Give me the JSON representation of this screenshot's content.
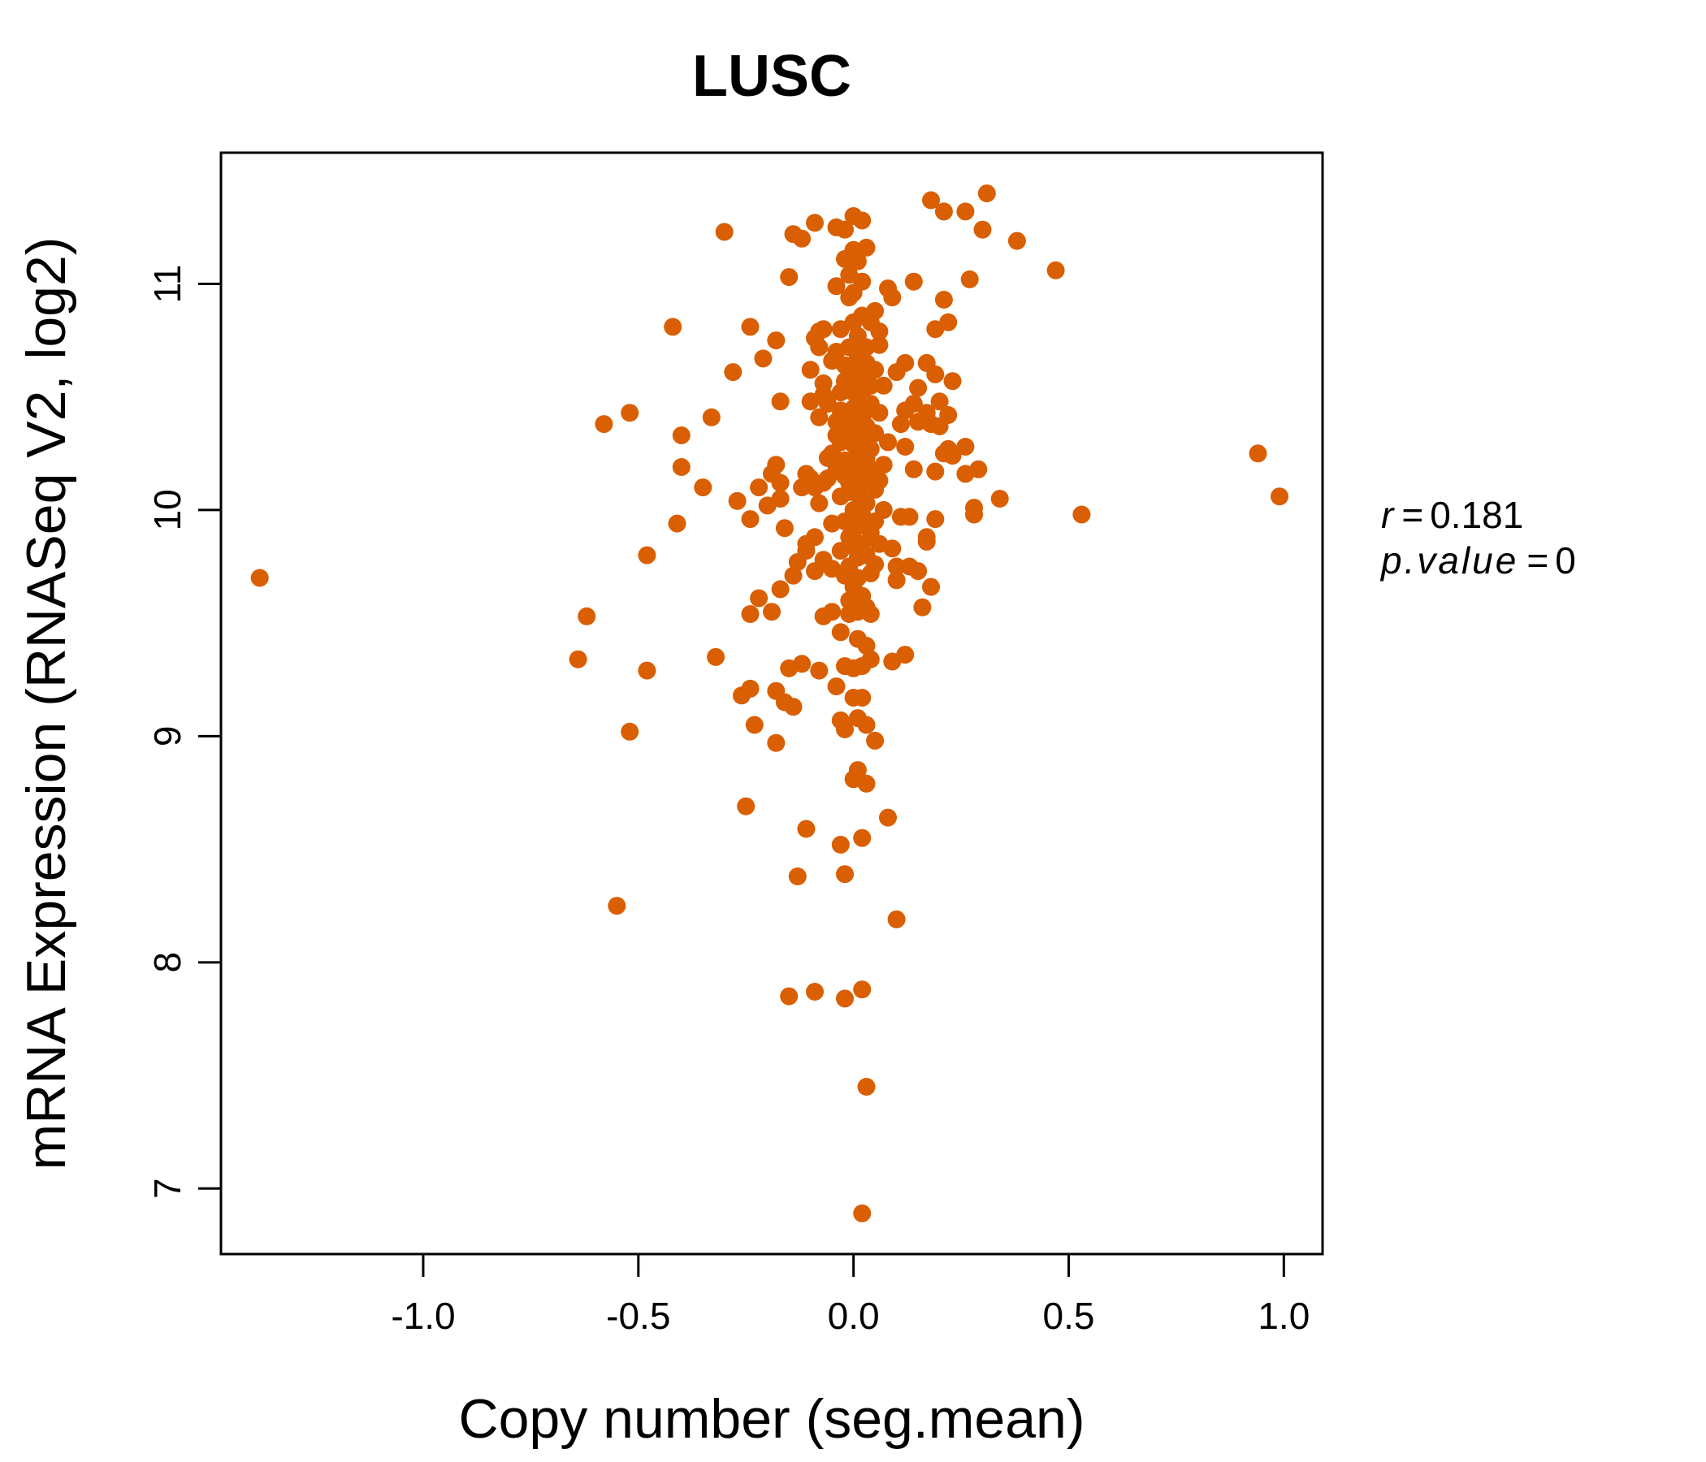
{
  "chart_data": {
    "type": "scatter",
    "title": "LUSC",
    "xlabel": "Copy number (seg.mean)",
    "ylabel": "mRNA Expression (RNASeq V2, log2)",
    "xlim": [
      -1.47,
      1.09
    ],
    "ylim": [
      6.71,
      11.58
    ],
    "xticks": [
      -1.0,
      -0.5,
      0.0,
      0.5,
      1.0
    ],
    "xtick_labels": [
      "-1.0",
      "-0.5",
      "0.0",
      "0.5",
      "1.0"
    ],
    "yticks": [
      7,
      8,
      9,
      10,
      11
    ],
    "ytick_labels": [
      "7",
      "8",
      "9",
      "10",
      "11"
    ],
    "grid": false,
    "legend": "none",
    "point_color": "#D95F02",
    "title_color": "#D95F02",
    "annotation": {
      "r_label": "r",
      "r_value": "0.181",
      "p_label": "p.value",
      "p_value": "0"
    },
    "points": [
      [
        -1.38,
        9.7
      ],
      [
        -0.64,
        9.34
      ],
      [
        -0.62,
        9.53
      ],
      [
        -0.58,
        10.38
      ],
      [
        -0.55,
        8.25
      ],
      [
        -0.52,
        10.43
      ],
      [
        -0.52,
        9.02
      ],
      [
        -0.48,
        9.8
      ],
      [
        -0.48,
        9.29
      ],
      [
        -0.42,
        10.81
      ],
      [
        -0.41,
        9.94
      ],
      [
        -0.4,
        10.33
      ],
      [
        -0.4,
        10.19
      ],
      [
        -0.35,
        10.1
      ],
      [
        -0.33,
        10.41
      ],
      [
        -0.32,
        9.35
      ],
      [
        -0.3,
        11.23
      ],
      [
        -0.28,
        10.61
      ],
      [
        -0.27,
        10.04
      ],
      [
        -0.26,
        9.18
      ],
      [
        -0.25,
        8.69
      ],
      [
        -0.24,
        9.21
      ],
      [
        -0.24,
        9.96
      ],
      [
        -0.24,
        9.54
      ],
      [
        -0.24,
        10.81
      ],
      [
        -0.23,
        9.05
      ],
      [
        -0.22,
        10.1
      ],
      [
        -0.22,
        9.61
      ],
      [
        -0.21,
        10.67
      ],
      [
        -0.2,
        10.02
      ],
      [
        -0.19,
        10.16
      ],
      [
        -0.19,
        9.55
      ],
      [
        -0.18,
        10.2
      ],
      [
        -0.18,
        9.2
      ],
      [
        -0.18,
        10.75
      ],
      [
        -0.18,
        8.97
      ],
      [
        -0.17,
        10.05
      ],
      [
        -0.17,
        10.12
      ],
      [
        -0.17,
        10.48
      ],
      [
        -0.17,
        9.65
      ],
      [
        -0.16,
        9.15
      ],
      [
        -0.16,
        9.92
      ],
      [
        -0.15,
        9.3
      ],
      [
        -0.15,
        11.03
      ],
      [
        -0.15,
        7.85
      ],
      [
        -0.14,
        9.13
      ],
      [
        -0.14,
        11.22
      ],
      [
        -0.14,
        9.71
      ],
      [
        -0.13,
        9.77
      ],
      [
        -0.13,
        8.38
      ],
      [
        -0.12,
        9.32
      ],
      [
        -0.12,
        10.1
      ],
      [
        -0.12,
        11.2
      ],
      [
        -0.11,
        8.59
      ],
      [
        -0.11,
        10.16
      ],
      [
        -0.11,
        9.85
      ],
      [
        -0.11,
        9.82
      ],
      [
        -0.1,
        10.62
      ],
      [
        -0.1,
        10.48
      ],
      [
        -0.1,
        10.14
      ],
      [
        -0.09,
        10.76
      ],
      [
        -0.09,
        10.1
      ],
      [
        -0.09,
        9.88
      ],
      [
        -0.09,
        9.73
      ],
      [
        -0.09,
        7.87
      ],
      [
        -0.09,
        11.27
      ],
      [
        -0.08,
        10.72
      ],
      [
        -0.08,
        10.79
      ],
      [
        -0.08,
        10.41
      ],
      [
        -0.08,
        10.03
      ],
      [
        -0.08,
        9.29
      ],
      [
        -0.07,
        10.8
      ],
      [
        -0.07,
        10.51
      ],
      [
        -0.07,
        10.12
      ],
      [
        -0.07,
        9.78
      ],
      [
        -0.07,
        9.53
      ],
      [
        -0.07,
        10.56
      ],
      [
        -0.06,
        10.23
      ],
      [
        -0.06,
        10.47
      ],
      [
        -0.06,
        10.14
      ],
      [
        -0.05,
        10.25
      ],
      [
        -0.05,
        10.66
      ],
      [
        -0.05,
        9.94
      ],
      [
        -0.05,
        9.74
      ],
      [
        -0.05,
        9.55
      ],
      [
        -0.04,
        10.7
      ],
      [
        -0.04,
        10.33
      ],
      [
        -0.04,
        9.22
      ],
      [
        -0.04,
        10.99
      ],
      [
        -0.04,
        10.18
      ],
      [
        -0.04,
        11.25
      ],
      [
        -0.04,
        10.39
      ],
      [
        -0.03,
        10.52
      ],
      [
        -0.03,
        10.06
      ],
      [
        -0.03,
        9.82
      ],
      [
        -0.03,
        9.46
      ],
      [
        -0.03,
        9.07
      ],
      [
        -0.03,
        8.52
      ],
      [
        -0.03,
        10.8
      ],
      [
        -0.03,
        10.44
      ],
      [
        -0.03,
        10.3
      ],
      [
        -0.02,
        10.22
      ],
      [
        -0.02,
        10.64
      ],
      [
        -0.02,
        10.15
      ],
      [
        -0.02,
        9.95
      ],
      [
        -0.02,
        9.71
      ],
      [
        -0.02,
        9.31
      ],
      [
        -0.02,
        9.03
      ],
      [
        -0.02,
        8.39
      ],
      [
        -0.02,
        7.84
      ],
      [
        -0.02,
        10.57
      ],
      [
        -0.02,
        11.11
      ],
      [
        -0.02,
        11.24
      ],
      [
        -0.01,
        10.41
      ],
      [
        -0.01,
        10.08
      ],
      [
        -0.01,
        9.88
      ],
      [
        -0.01,
        9.6
      ],
      [
        -0.01,
        9.54
      ],
      [
        -0.01,
        10.94
      ],
      [
        -0.01,
        10.72
      ],
      [
        -0.01,
        10.35
      ],
      [
        -0.01,
        10.12
      ],
      [
        -0.01,
        9.75
      ],
      [
        -0.01,
        11.04
      ],
      [
        0.0,
        10.62
      ],
      [
        0.0,
        10.45
      ],
      [
        0.0,
        10.29
      ],
      [
        0.0,
        10.0
      ],
      [
        0.0,
        9.84
      ],
      [
        0.0,
        9.3
      ],
      [
        0.0,
        9.17
      ],
      [
        0.0,
        8.81
      ],
      [
        0.0,
        11.3
      ],
      [
        0.0,
        10.83
      ],
      [
        0.0,
        10.52
      ],
      [
        0.0,
        10.38
      ],
      [
        0.0,
        10.18
      ],
      [
        0.0,
        9.91
      ],
      [
        0.0,
        9.66
      ],
      [
        0.0,
        11.15
      ],
      [
        0.0,
        10.96
      ],
      [
        0.01,
        10.68
      ],
      [
        0.01,
        10.46
      ],
      [
        0.01,
        10.25
      ],
      [
        0.01,
        10.07
      ],
      [
        0.01,
        9.79
      ],
      [
        0.01,
        9.55
      ],
      [
        0.01,
        9.43
      ],
      [
        0.01,
        9.08
      ],
      [
        0.01,
        8.85
      ],
      [
        0.01,
        11.1
      ],
      [
        0.01,
        10.77
      ],
      [
        0.01,
        10.56
      ],
      [
        0.01,
        10.34
      ],
      [
        0.01,
        10.14
      ],
      [
        0.01,
        9.93
      ],
      [
        0.01,
        9.7
      ],
      [
        0.02,
        10.6
      ],
      [
        0.02,
        10.41
      ],
      [
        0.02,
        10.2
      ],
      [
        0.02,
        9.98
      ],
      [
        0.02,
        9.85
      ],
      [
        0.02,
        9.62
      ],
      [
        0.02,
        9.31
      ],
      [
        0.02,
        9.17
      ],
      [
        0.02,
        8.55
      ],
      [
        0.02,
        7.88
      ],
      [
        0.02,
        6.89
      ],
      [
        0.02,
        11.28
      ],
      [
        0.02,
        11.01
      ],
      [
        0.02,
        10.86
      ],
      [
        0.02,
        10.52
      ],
      [
        0.02,
        10.3
      ],
      [
        0.03,
        10.65
      ],
      [
        0.03,
        10.44
      ],
      [
        0.03,
        10.23
      ],
      [
        0.03,
        10.03
      ],
      [
        0.03,
        9.8
      ],
      [
        0.03,
        9.57
      ],
      [
        0.03,
        9.4
      ],
      [
        0.03,
        9.05
      ],
      [
        0.03,
        8.79
      ],
      [
        0.03,
        7.45
      ],
      [
        0.03,
        11.16
      ],
      [
        0.03,
        10.72
      ],
      [
        0.03,
        10.37
      ],
      [
        0.03,
        10.11
      ],
      [
        0.04,
        10.55
      ],
      [
        0.04,
        10.27
      ],
      [
        0.04,
        9.9
      ],
      [
        0.04,
        9.72
      ],
      [
        0.04,
        9.54
      ],
      [
        0.04,
        9.34
      ],
      [
        0.04,
        10.83
      ],
      [
        0.04,
        10.47
      ],
      [
        0.04,
        10.18
      ],
      [
        0.05,
        10.62
      ],
      [
        0.05,
        10.34
      ],
      [
        0.05,
        9.95
      ],
      [
        0.05,
        9.76
      ],
      [
        0.05,
        8.98
      ],
      [
        0.05,
        10.88
      ],
      [
        0.05,
        10.09
      ],
      [
        0.06,
        10.73
      ],
      [
        0.06,
        10.43
      ],
      [
        0.06,
        10.13
      ],
      [
        0.06,
        9.85
      ],
      [
        0.06,
        10.79
      ],
      [
        0.07,
        10.55
      ],
      [
        0.07,
        10.0
      ],
      [
        0.07,
        10.2
      ],
      [
        0.08,
        8.64
      ],
      [
        0.08,
        10.98
      ],
      [
        0.08,
        10.3
      ],
      [
        0.09,
        9.83
      ],
      [
        0.09,
        10.94
      ],
      [
        0.09,
        9.33
      ],
      [
        0.1,
        10.61
      ],
      [
        0.1,
        9.75
      ],
      [
        0.1,
        9.69
      ],
      [
        0.1,
        8.19
      ],
      [
        0.11,
        10.38
      ],
      [
        0.11,
        9.97
      ],
      [
        0.12,
        10.65
      ],
      [
        0.12,
        10.44
      ],
      [
        0.12,
        10.28
      ],
      [
        0.12,
        9.36
      ],
      [
        0.13,
        9.97
      ],
      [
        0.13,
        9.75
      ],
      [
        0.14,
        10.47
      ],
      [
        0.14,
        10.18
      ],
      [
        0.14,
        11.01
      ],
      [
        0.15,
        10.39
      ],
      [
        0.15,
        9.73
      ],
      [
        0.15,
        10.54
      ],
      [
        0.16,
        9.57
      ],
      [
        0.17,
        10.65
      ],
      [
        0.17,
        9.88
      ],
      [
        0.17,
        9.86
      ],
      [
        0.17,
        10.43
      ],
      [
        0.18,
        9.66
      ],
      [
        0.18,
        10.38
      ],
      [
        0.18,
        11.37
      ],
      [
        0.19,
        10.6
      ],
      [
        0.19,
        10.8
      ],
      [
        0.19,
        10.17
      ],
      [
        0.19,
        9.96
      ],
      [
        0.2,
        10.48
      ],
      [
        0.2,
        10.37
      ],
      [
        0.21,
        10.93
      ],
      [
        0.21,
        11.32
      ],
      [
        0.21,
        10.25
      ],
      [
        0.22,
        10.83
      ],
      [
        0.22,
        10.42
      ],
      [
        0.22,
        10.27
      ],
      [
        0.23,
        10.24
      ],
      [
        0.23,
        10.57
      ],
      [
        0.26,
        10.16
      ],
      [
        0.26,
        10.28
      ],
      [
        0.26,
        11.32
      ],
      [
        0.27,
        11.02
      ],
      [
        0.28,
        9.98
      ],
      [
        0.28,
        10.01
      ],
      [
        0.29,
        10.18
      ],
      [
        0.3,
        11.24
      ],
      [
        0.31,
        11.4
      ],
      [
        0.34,
        10.05
      ],
      [
        0.38,
        11.19
      ],
      [
        0.47,
        11.06
      ],
      [
        0.53,
        9.98
      ],
      [
        0.94,
        10.25
      ],
      [
        0.99,
        10.06
      ]
    ]
  }
}
